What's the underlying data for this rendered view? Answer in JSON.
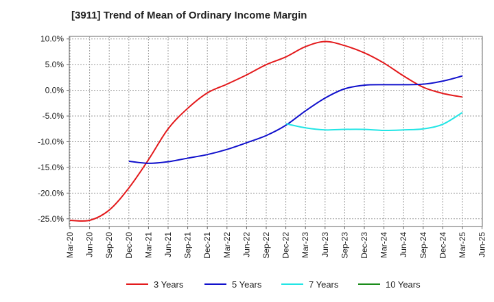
{
  "chart_data": {
    "type": "line",
    "title": "[3911]  Trend of Mean of Ordinary Income Margin",
    "xlabel": "",
    "ylabel": "",
    "x_ticks": [
      "Mar-20",
      "Jun-20",
      "Sep-20",
      "Dec-20",
      "Mar-21",
      "Jun-21",
      "Sep-21",
      "Dec-21",
      "Mar-22",
      "Jun-22",
      "Sep-22",
      "Dec-22",
      "Mar-23",
      "Jun-23",
      "Sep-23",
      "Dec-23",
      "Mar-24",
      "Jun-24",
      "Sep-24",
      "Dec-24",
      "Mar-25",
      "Jun-25"
    ],
    "y_ticks": [
      "10.0%",
      "5.0%",
      "0.0%",
      "-5.0%",
      "-10.0%",
      "-15.0%",
      "-20.0%",
      "-25.0%"
    ],
    "y_tick_values": [
      10,
      5,
      0,
      -5,
      -10,
      -15,
      -20,
      -25
    ],
    "ylim": [
      -26.5,
      10.5
    ],
    "grid": true,
    "legend_position": "bottom",
    "series": [
      {
        "name": "3 Years",
        "color": "#e31a1c",
        "x": [
          "Mar-20",
          "Jun-20",
          "Sep-20",
          "Dec-20",
          "Mar-21",
          "Jun-21",
          "Sep-21",
          "Dec-21",
          "Mar-22",
          "Jun-22",
          "Sep-22",
          "Dec-22",
          "Mar-23",
          "Jun-23",
          "Sep-23",
          "Dec-23",
          "Mar-24",
          "Jun-24",
          "Sep-24",
          "Dec-24",
          "Mar-25"
        ],
        "values": [
          -25.3,
          -25.3,
          -23.3,
          -19.0,
          -13.5,
          -7.5,
          -3.5,
          -0.5,
          1.2,
          3.0,
          5.0,
          6.5,
          8.5,
          9.5,
          8.7,
          7.3,
          5.3,
          2.8,
          0.6,
          -0.6,
          -1.3
        ]
      },
      {
        "name": "5 Years",
        "color": "#1010cc",
        "x": [
          "Dec-20",
          "Mar-21",
          "Jun-21",
          "Sep-21",
          "Dec-21",
          "Mar-22",
          "Jun-22",
          "Sep-22",
          "Dec-22",
          "Mar-23",
          "Jun-23",
          "Sep-23",
          "Dec-23",
          "Mar-24",
          "Jun-24",
          "Sep-24",
          "Dec-24",
          "Mar-25"
        ],
        "values": [
          -13.8,
          -14.2,
          -13.9,
          -13.2,
          -12.5,
          -11.5,
          -10.2,
          -8.8,
          -6.8,
          -4.0,
          -1.5,
          0.3,
          1.0,
          1.1,
          1.1,
          1.2,
          1.8,
          2.8
        ]
      },
      {
        "name": "7 Years",
        "color": "#22e5e5",
        "x": [
          "Dec-22",
          "Mar-23",
          "Jun-23",
          "Sep-23",
          "Dec-23",
          "Mar-24",
          "Jun-24",
          "Sep-24",
          "Dec-24",
          "Mar-25"
        ],
        "values": [
          -6.5,
          -7.3,
          -7.7,
          -7.6,
          -7.6,
          -7.8,
          -7.7,
          -7.5,
          -6.6,
          -4.3
        ]
      },
      {
        "name": "10 Years",
        "color": "#1a8c1a",
        "x": [],
        "values": []
      }
    ]
  }
}
